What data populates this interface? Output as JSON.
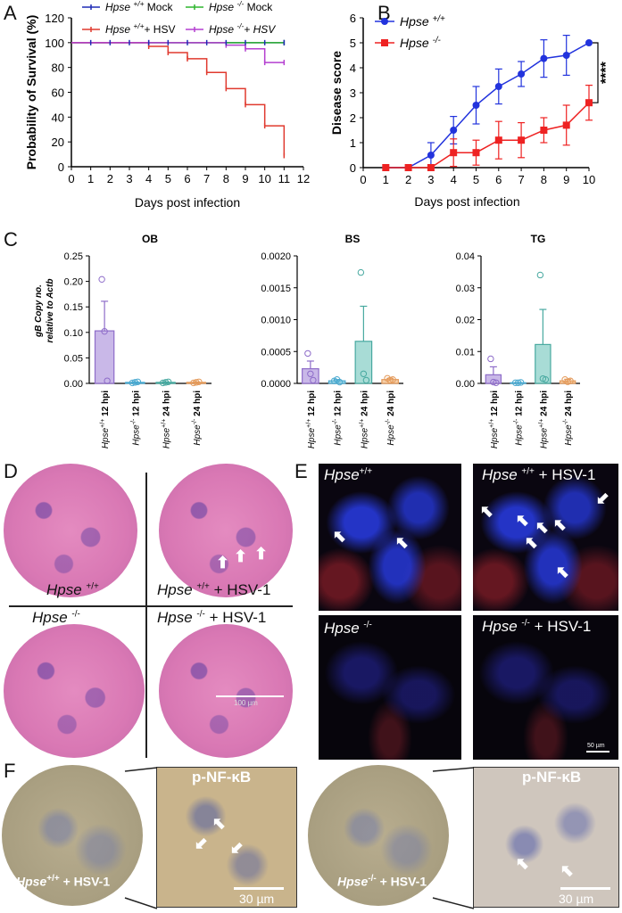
{
  "panels": {
    "A": "A",
    "B": "B",
    "C": "C",
    "D": "D",
    "E": "E",
    "F": "F"
  },
  "chart_data": [
    {
      "type": "line",
      "panel": "A",
      "xlabel": "Days post infection",
      "ylabel": "Probability of Survival (%)",
      "xlim": [
        0,
        12
      ],
      "ylim": [
        0,
        120
      ],
      "xticks": [
        "0",
        "1",
        "2",
        "3",
        "4",
        "5",
        "6",
        "7",
        "8",
        "9",
        "10",
        "11",
        "12"
      ],
      "yticks": [
        "0",
        "20",
        "40",
        "60",
        "80",
        "100",
        "120"
      ],
      "legend": [
        "Hpse +/+ Mock",
        "Hpse -/- Mock",
        "Hpse +/+ + HSV",
        "Hpse -/- + HSV"
      ],
      "legend_parts": [
        {
          "gene": "Hpse",
          "geno": "+/+",
          "tail": " Mock"
        },
        {
          "gene": "Hpse",
          "geno": "-/-",
          "tail": " Mock"
        },
        {
          "gene": "Hpse",
          "geno": "+/+",
          "tail": "+ HSV"
        },
        {
          "gene": "Hpse",
          "geno": "-/-",
          "tail": "+ HSV"
        }
      ],
      "series": [
        {
          "name": "Hpse +/+ Mock",
          "color": "#1f2bb5",
          "x": [
            0,
            11
          ],
          "y": [
            100,
            100
          ]
        },
        {
          "name": "Hpse -/- Mock",
          "color": "#2fb52f",
          "x": [
            0,
            11
          ],
          "y": [
            100,
            100
          ]
        },
        {
          "name": "Hpse +/+ + HSV",
          "color": "#e03a2f",
          "x": [
            0,
            4,
            5,
            6,
            7,
            8,
            9,
            10,
            11
          ],
          "y": [
            100,
            97,
            92,
            87,
            76,
            63,
            50,
            33,
            9
          ]
        },
        {
          "name": "Hpse -/- + HSV",
          "color": "#b43fd0",
          "x": [
            0,
            4,
            8,
            9,
            10,
            11
          ],
          "y": [
            100,
            100,
            98,
            95,
            84,
            84
          ]
        }
      ]
    },
    {
      "type": "line",
      "panel": "B",
      "xlabel": "Days post infection",
      "ylabel": "Disease score",
      "xlim": [
        0,
        10
      ],
      "ylim": [
        0,
        6
      ],
      "xticks": [
        "0",
        "1",
        "2",
        "3",
        "4",
        "5",
        "6",
        "7",
        "8",
        "9",
        "10"
      ],
      "yticks": [
        "0",
        "1",
        "2",
        "3",
        "4",
        "5",
        "6"
      ],
      "significance": "****",
      "legend_parts": [
        {
          "gene": "Hpse",
          "geno": "+/+"
        },
        {
          "gene": "Hpse",
          "geno": "-/-"
        }
      ],
      "series": [
        {
          "name": "Hpse +/+",
          "color": "#2233dd",
          "marker": "circle",
          "x": [
            1,
            2,
            3,
            4,
            5,
            6,
            7,
            8,
            9,
            10
          ],
          "y": [
            0,
            0,
            0.5,
            1.5,
            2.5,
            3.25,
            3.75,
            4.37,
            4.5,
            5
          ],
          "err": [
            0,
            0,
            0.5,
            0.55,
            0.75,
            0.7,
            0.5,
            0.75,
            0.8,
            0
          ]
        },
        {
          "name": "Hpse -/-",
          "color": "#ee2222",
          "marker": "square",
          "x": [
            1,
            2,
            3,
            4,
            5,
            6,
            7,
            8,
            9,
            10
          ],
          "y": [
            0,
            0,
            0,
            0.6,
            0.6,
            1.1,
            1.1,
            1.5,
            1.7,
            2.6
          ],
          "err": [
            0,
            0,
            0,
            0.55,
            0.5,
            0.75,
            0.7,
            0.5,
            0.8,
            0.7
          ]
        }
      ]
    },
    {
      "type": "bar",
      "panel": "C",
      "title": "OB",
      "ylabel_1": "gB Copy no.",
      "ylabel_2": "relative to Actb",
      "ylim": [
        0,
        0.25
      ],
      "yticks": [
        "0.00",
        "0.05",
        "0.10",
        "0.15",
        "0.20",
        "0.25"
      ],
      "categories": [
        "Hpse +/+ 12 hpi",
        "Hpse -/- 12 hpi",
        "Hpse +/+ 24 hpi",
        "Hpse -/- 24 hpi"
      ],
      "values": [
        0.103,
        0.002,
        0.002,
        0.002
      ],
      "err": [
        0.058,
        0.001,
        0.001,
        0.001
      ],
      "points": [
        [
          0.204,
          0.102,
          0.005
        ],
        [
          0.001,
          0.002,
          0.003
        ],
        [
          0.001,
          0.002,
          0.003
        ],
        [
          0.001,
          0.002,
          0.003
        ]
      ]
    },
    {
      "type": "bar",
      "panel": "C",
      "title": "BS",
      "ylim": [
        0,
        0.002
      ],
      "yticks": [
        "0.0000",
        "0.0005",
        "0.0010",
        "0.0015",
        "0.0020"
      ],
      "categories": [
        "Hpse +/+ 12 hpi",
        "Hpse -/- 12 hpi",
        "Hpse +/+ 24 hpi",
        "Hpse -/- 24 hpi"
      ],
      "values": [
        0.00023,
        4e-05,
        0.00066,
        6e-05
      ],
      "err": [
        0.00012,
        2e-05,
        0.00055,
        2e-05
      ],
      "points": [
        [
          0.00047,
          0.00015,
          5e-05
        ],
        [
          4e-05,
          6e-05,
          2e-05
        ],
        [
          0.00174,
          0.00015,
          5e-05
        ],
        [
          8e-05,
          5e-05,
          6e-05
        ]
      ]
    },
    {
      "type": "bar",
      "panel": "C",
      "title": "TG",
      "ylim": [
        0,
        0.04
      ],
      "yticks": [
        "0.00",
        "0.01",
        "0.02",
        "0.03",
        "0.04"
      ],
      "categories": [
        "Hpse +/+ 12 hpi",
        "Hpse -/- 12 hpi",
        "Hpse +/+ 24 hpi",
        "Hpse -/- 24 hpi"
      ],
      "values": [
        0.0027,
        0.0002,
        0.0122,
        0.0008
      ],
      "err": [
        0.0025,
        0.0001,
        0.011,
        0.0005
      ],
      "points": [
        [
          0.0077,
          0.0004,
          0.0002
        ],
        [
          0.0002,
          0.0002,
          0.0003
        ],
        [
          0.034,
          0.0015,
          0.0012
        ],
        [
          0.0012,
          0.0005,
          0.0008
        ]
      ]
    }
  ],
  "panel_c_category_labels": [
    {
      "gene": "Hpse",
      "geno": "+/+",
      "time": "12 hpi"
    },
    {
      "gene": "Hpse",
      "geno": "-/-",
      "time": "12 hpi"
    },
    {
      "gene": "Hpse",
      "geno": "+/+",
      "time": "24 hpi"
    },
    {
      "gene": "Hpse",
      "geno": "-/-",
      "time": "24 hpi"
    }
  ],
  "bar_colors": [
    "#c9b8e8",
    "#a9dbe8",
    "#a8dcd6",
    "#f5cfa8"
  ],
  "bar_edges": [
    "#8e6cc9",
    "#49a9d0",
    "#48a9a0",
    "#e49a5a"
  ],
  "panel_d": {
    "wt": {
      "gene": "Hpse",
      "geno": "+/+",
      "tail": ""
    },
    "wt_hsv": {
      "gene": "Hpse",
      "geno": "+/+",
      "tail": " + HSV-1"
    },
    "ko": {
      "gene": "Hpse",
      "geno": "-/-",
      "tail": ""
    },
    "ko_hsv": {
      "gene": "Hpse",
      "geno": "-/-",
      "tail": " + HSV-1"
    },
    "scale": "100 µm"
  },
  "panel_e": {
    "wt": {
      "gene": "Hpse",
      "geno": "+/+",
      "tail": ""
    },
    "wt_hsv": {
      "gene": "Hpse",
      "geno": "+/+",
      "tail": " +  HSV-1"
    },
    "ko": {
      "gene": "Hpse",
      "geno": "-/-",
      "tail": ""
    },
    "ko_hsv": {
      "gene": "Hpse",
      "geno": "-/-",
      "tail": " + HSV-1"
    },
    "scale": "50 µm"
  },
  "panel_f": {
    "stain": "p-NF-κB",
    "wt_hsv": {
      "gene": "Hpse",
      "geno": "+/+",
      "tail": " +  HSV-1"
    },
    "ko_hsv": {
      "gene": "Hpse",
      "geno": "-/-",
      "tail": " +  HSV-1"
    },
    "scale": "30 µm"
  }
}
